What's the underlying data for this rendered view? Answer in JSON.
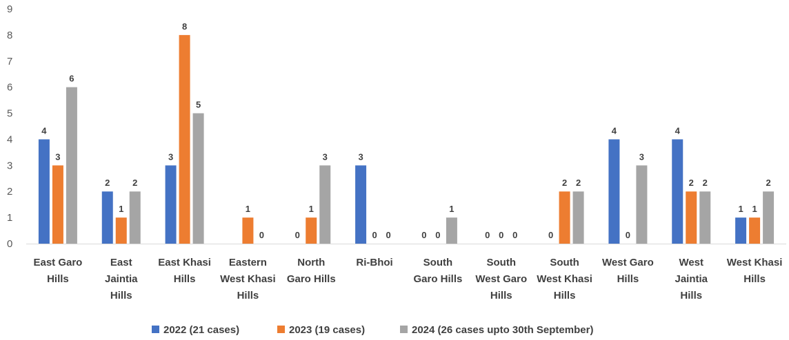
{
  "chart_data": {
    "type": "bar",
    "title": "",
    "xlabel": "",
    "ylabel": "",
    "ylim": [
      0,
      9
    ],
    "yticks": [
      0,
      1,
      2,
      3,
      4,
      5,
      6,
      7,
      8,
      9
    ],
    "grid": false,
    "legend_position": "bottom",
    "categories": [
      [
        "East Garo",
        "Hills"
      ],
      [
        "East",
        "Jaintia",
        "Hills"
      ],
      [
        "East Khasi",
        "Hills"
      ],
      [
        "Eastern",
        "West Khasi",
        "Hills"
      ],
      [
        "North",
        "Garo Hills"
      ],
      [
        "Ri-Bhoi"
      ],
      [
        "South",
        "Garo Hills"
      ],
      [
        "South",
        "West Garo",
        "Hills"
      ],
      [
        "South",
        "West Khasi",
        "Hills"
      ],
      [
        "West Garo",
        "Hills"
      ],
      [
        "West",
        "Jaintia",
        "Hills"
      ],
      [
        "West Khasi",
        "Hills"
      ]
    ],
    "series": [
      {
        "name": "2022 (21 cases)",
        "color": "#4472C4",
        "values": [
          4,
          2,
          3,
          null,
          0,
          3,
          0,
          0,
          0,
          4,
          4,
          1
        ]
      },
      {
        "name": "2023 (19 cases)",
        "color": "#ED7D31",
        "values": [
          3,
          1,
          8,
          1,
          1,
          0,
          0,
          0,
          2,
          0,
          2,
          1
        ]
      },
      {
        "name": "2024 (26 cases upto 30th September)",
        "color": "#A5A5A5",
        "values": [
          6,
          2,
          5,
          0,
          3,
          0,
          1,
          0,
          2,
          3,
          2,
          2
        ]
      }
    ]
  }
}
